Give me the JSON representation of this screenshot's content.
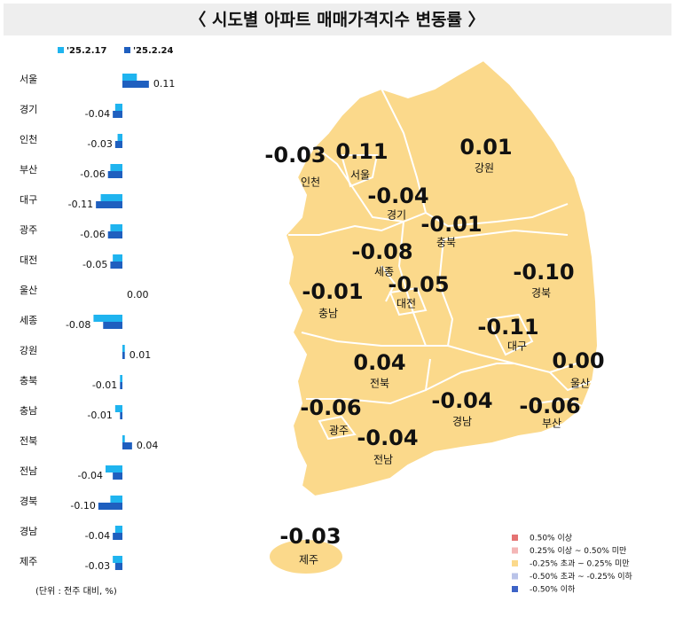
{
  "chart_data": {
    "type": "bar",
    "orientation": "horizontal",
    "title": "〈 시도별 아파트 매매가격지수 변동률 〉",
    "note": "(단위 : 전주 대비, %)",
    "categories": [
      "서울",
      "경기",
      "인천",
      "부산",
      "대구",
      "광주",
      "대전",
      "울산",
      "세종",
      "강원",
      "충북",
      "충남",
      "전북",
      "전남",
      "경북",
      "경남",
      "제주"
    ],
    "series": [
      {
        "name": "'25.2.17",
        "color": "#1fb4ef",
        "values": [
          0.06,
          -0.03,
          -0.02,
          -0.05,
          -0.09,
          -0.05,
          -0.04,
          0.0,
          -0.12,
          0.01,
          -0.01,
          -0.03,
          0.01,
          -0.07,
          -0.05,
          -0.03,
          -0.04
        ]
      },
      {
        "name": "'25.2.24",
        "color": "#1f5fbf",
        "values": [
          0.11,
          -0.04,
          -0.03,
          -0.06,
          -0.11,
          -0.06,
          -0.05,
          0.0,
          -0.08,
          0.01,
          -0.01,
          -0.01,
          0.04,
          -0.04,
          -0.1,
          -0.04,
          -0.03
        ],
        "value_labels": [
          "0.11",
          "-0.04",
          "-0.03",
          "-0.06",
          "-0.11",
          "-0.06",
          "-0.05",
          "0.00",
          "-0.08",
          "0.01",
          "-0.01",
          "-0.01",
          "0.04",
          "-0.04",
          "-0.10",
          "-0.04",
          "-0.03"
        ]
      }
    ],
    "xlim": [
      -0.14,
      0.14
    ]
  },
  "map": {
    "legend": [
      {
        "label": "0.50% 이상",
        "color": "#e57373"
      },
      {
        "label": "0.25% 이상 ~ 0.50% 미만",
        "color": "#f4b6b6"
      },
      {
        "label": "-0.25% 초과 ~ 0.25% 미만",
        "color": "#fbd98b"
      },
      {
        "label": "-0.50% 초과 ~ -0.25% 이하",
        "color": "#b9c3e8"
      },
      {
        "label": "-0.50% 이하",
        "color": "#3d63c7"
      }
    ]
  }
}
